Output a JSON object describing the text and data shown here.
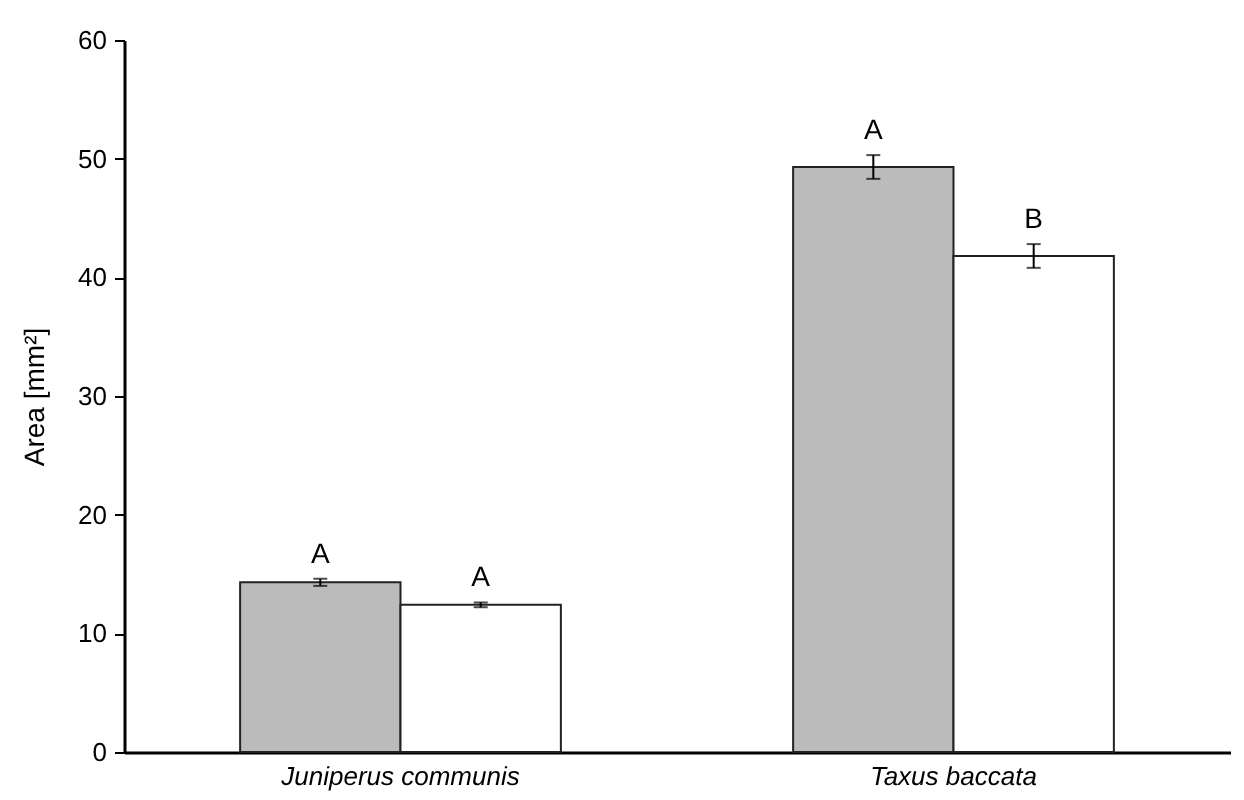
{
  "chart_data": {
    "type": "bar",
    "ylabel": "Area [mm²]",
    "categories": [
      "Juniperus communis",
      "Taxus baccata"
    ],
    "series": [
      {
        "color": "#bbbbbb",
        "values": [
          14.3,
          49.3
        ],
        "errors": [
          0.3,
          1.0
        ]
      },
      {
        "color": "#ffffff",
        "values": [
          12.4,
          41.8
        ],
        "errors": [
          0.2,
          1.0
        ]
      }
    ],
    "ylim": [
      0,
      60
    ],
    "yticks": [
      0,
      10,
      20,
      30,
      40,
      50,
      60
    ],
    "grid": false,
    "annotations": [
      {
        "text": "A",
        "x": "Juniperus communis",
        "y": 14.3
      },
      {
        "text": "A",
        "x": "Juniperus communis",
        "y": 12.4
      },
      {
        "text": "A",
        "x": "Taxus baccata",
        "y": 49.3
      },
      {
        "text": "B",
        "x": "Taxus baccata",
        "y": 41.8
      }
    ]
  }
}
